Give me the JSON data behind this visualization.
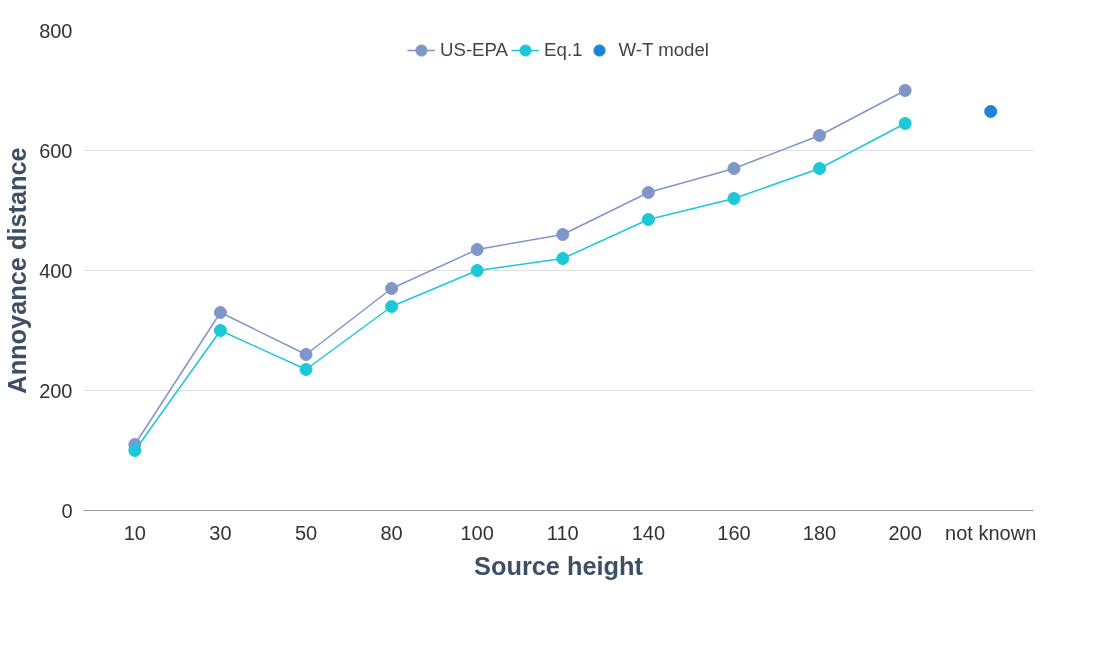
{
  "chart_data": {
    "type": "line",
    "xlabel": "Source height",
    "ylabel": "Annoyance distance",
    "categories": [
      "10",
      "30",
      "50",
      "80",
      "100",
      "110",
      "140",
      "160",
      "180",
      "200",
      "not known"
    ],
    "series": [
      {
        "name": "US-EPA",
        "color": "#8096c8",
        "values": [
          110,
          330,
          260,
          370,
          435,
          460,
          530,
          570,
          625,
          700,
          null
        ]
      },
      {
        "name": "Eq.1",
        "color": "#1cc8d8",
        "values": [
          100,
          300,
          235,
          340,
          400,
          420,
          485,
          520,
          570,
          645,
          null
        ]
      },
      {
        "name": "W-T model",
        "color": "#1a84d8",
        "type": "scatter",
        "values": [
          null,
          null,
          null,
          null,
          null,
          null,
          null,
          null,
          null,
          null,
          665
        ]
      }
    ],
    "ylim": [
      0,
      800
    ],
    "yticks": [
      0,
      200,
      400,
      600,
      800
    ],
    "grid": "y",
    "legend": "top",
    "marker": "circle",
    "line_style": "solid"
  }
}
